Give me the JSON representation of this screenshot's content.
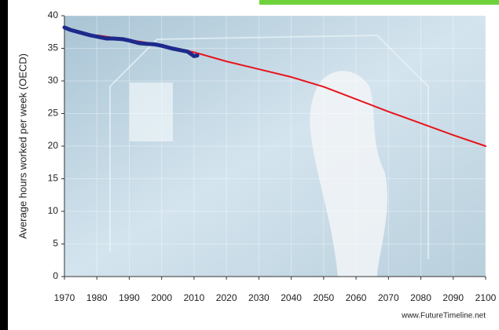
{
  "chart_data": {
    "type": "line",
    "y_label": "Average hours worked per week (OECD)",
    "source": "www.FutureTimeline.net",
    "xlim": [
      1970,
      2100
    ],
    "xticks": [
      1970,
      1980,
      1990,
      2000,
      2010,
      2020,
      2030,
      2040,
      2050,
      2060,
      2070,
      2080,
      2090,
      2100
    ],
    "ylim": [
      0,
      40
    ],
    "yticks": [
      0,
      5,
      10,
      15,
      20,
      25,
      30,
      35,
      40
    ],
    "grid": true,
    "series": [
      {
        "color": "#e8141c",
        "width": 2,
        "x": [
          1980,
          1990,
          2000,
          2010,
          2020,
          2030,
          2040,
          2050,
          2060,
          2070,
          2080,
          2090,
          2100
        ],
        "values": [
          37.0,
          36.3,
          35.5,
          34.4,
          33.0,
          31.8,
          30.6,
          29.1,
          27.2,
          25.3,
          23.5,
          21.7,
          20.0
        ]
      },
      {
        "color": "#1d2a8c",
        "width": 5,
        "x": [
          1970,
          1972,
          1975,
          1978,
          1980,
          1983,
          1985,
          1988,
          1990,
          1993,
          1995,
          1998,
          2000,
          2003,
          2005,
          2008,
          2010,
          2011
        ],
        "values": [
          38.2,
          37.8,
          37.4,
          37.0,
          36.8,
          36.5,
          36.5,
          36.4,
          36.2,
          35.8,
          35.7,
          35.6,
          35.4,
          35.0,
          34.8,
          34.5,
          33.8,
          33.9
        ]
      }
    ]
  }
}
